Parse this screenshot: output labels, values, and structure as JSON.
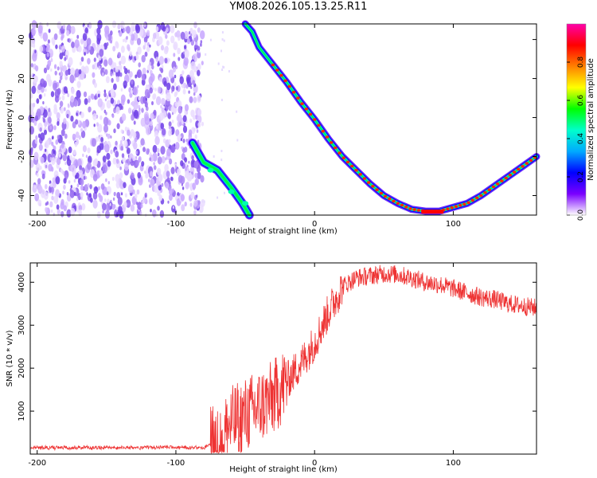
{
  "page_title": "YM08.2026.105.13.25.R11",
  "chart_data": [
    {
      "type": "heatmap",
      "title": "YM08.2026.105.13.25.R11",
      "xlabel": "Height of straight line (km)",
      "ylabel": "Frequency (Hz)",
      "xlim": [
        -205,
        160
      ],
      "ylim": [
        -50,
        48
      ],
      "x_ticks": [
        -200,
        -100,
        0,
        100
      ],
      "x_tick_labels": [
        "-200",
        "-100",
        "0",
        "100"
      ],
      "y_ticks": [
        -40,
        -20,
        0,
        20,
        40
      ],
      "y_tick_labels": [
        "-40",
        "-20",
        "0",
        "20",
        "40"
      ],
      "noise_region_x": [
        -205,
        -85
      ],
      "doppler_curve": {
        "description": "Frequency of peak spectral amplitude vs height",
        "points": [
          [
            -88,
            -13
          ],
          [
            -80,
            -23
          ],
          [
            -70,
            -27
          ],
          [
            -60,
            -36
          ],
          [
            -52,
            -44
          ],
          [
            -47,
            -50
          ],
          [
            -50,
            48
          ],
          [
            -45,
            44
          ],
          [
            -40,
            36
          ],
          [
            -30,
            27
          ],
          [
            -20,
            18
          ],
          [
            -10,
            8
          ],
          [
            0,
            -1
          ],
          [
            10,
            -11
          ],
          [
            20,
            -20
          ],
          [
            30,
            -27
          ],
          [
            40,
            -34
          ],
          [
            50,
            -40
          ],
          [
            60,
            -44
          ],
          [
            70,
            -47
          ],
          [
            80,
            -48
          ],
          [
            90,
            -48
          ],
          [
            100,
            -46
          ],
          [
            110,
            -44
          ],
          [
            120,
            -40
          ],
          [
            130,
            -35
          ],
          [
            140,
            -30
          ],
          [
            150,
            -25
          ],
          [
            160,
            -20
          ]
        ]
      },
      "colorbar": {
        "label": "Normalized spectral amplitude",
        "range": [
          0,
          1
        ],
        "ticks": [
          0,
          0.2,
          0.4,
          0.6,
          0.8
        ],
        "tick_labels": [
          "0.0",
          "0.2",
          "0.4",
          "0.6",
          "0.8"
        ],
        "colors": [
          "#ffffff",
          "#7a00ff",
          "#0000ff",
          "#00aaff",
          "#00ffcc",
          "#00ff00",
          "#ffff00",
          "#ff8000",
          "#ff0000",
          "#ff00aa"
        ]
      }
    },
    {
      "type": "line",
      "xlabel": "Height of straight line (km)",
      "ylabel": "SNR (10 * v/v)",
      "xlim": [
        -205,
        160
      ],
      "ylim": [
        0,
        4450
      ],
      "x_ticks": [
        -200,
        -100,
        0,
        100
      ],
      "x_tick_labels": [
        "-200",
        "-100",
        "0",
        "100"
      ],
      "y_ticks": [
        1000,
        2000,
        3000,
        4000
      ],
      "y_tick_labels": [
        "1000",
        "2000",
        "3000",
        "4000"
      ],
      "series": [
        {
          "name": "SNR",
          "color": "#ee3333",
          "trend": [
            [
              -205,
              130
            ],
            [
              -80,
              140
            ],
            [
              -70,
              300
            ],
            [
              -60,
              700
            ],
            [
              -50,
              900
            ],
            [
              -40,
              1100
            ],
            [
              -30,
              1300
            ],
            [
              -20,
              1700
            ],
            [
              -10,
              2100
            ],
            [
              0,
              2600
            ],
            [
              10,
              3300
            ],
            [
              20,
              3900
            ],
            [
              30,
              4100
            ],
            [
              40,
              4150
            ],
            [
              50,
              4200
            ],
            [
              60,
              4180
            ],
            [
              70,
              4100
            ],
            [
              80,
              4000
            ],
            [
              90,
              3950
            ],
            [
              100,
              3850
            ],
            [
              110,
              3750
            ],
            [
              120,
              3650
            ],
            [
              130,
              3600
            ],
            [
              140,
              3500
            ],
            [
              150,
              3450
            ],
            [
              160,
              3400
            ]
          ]
        }
      ]
    }
  ]
}
